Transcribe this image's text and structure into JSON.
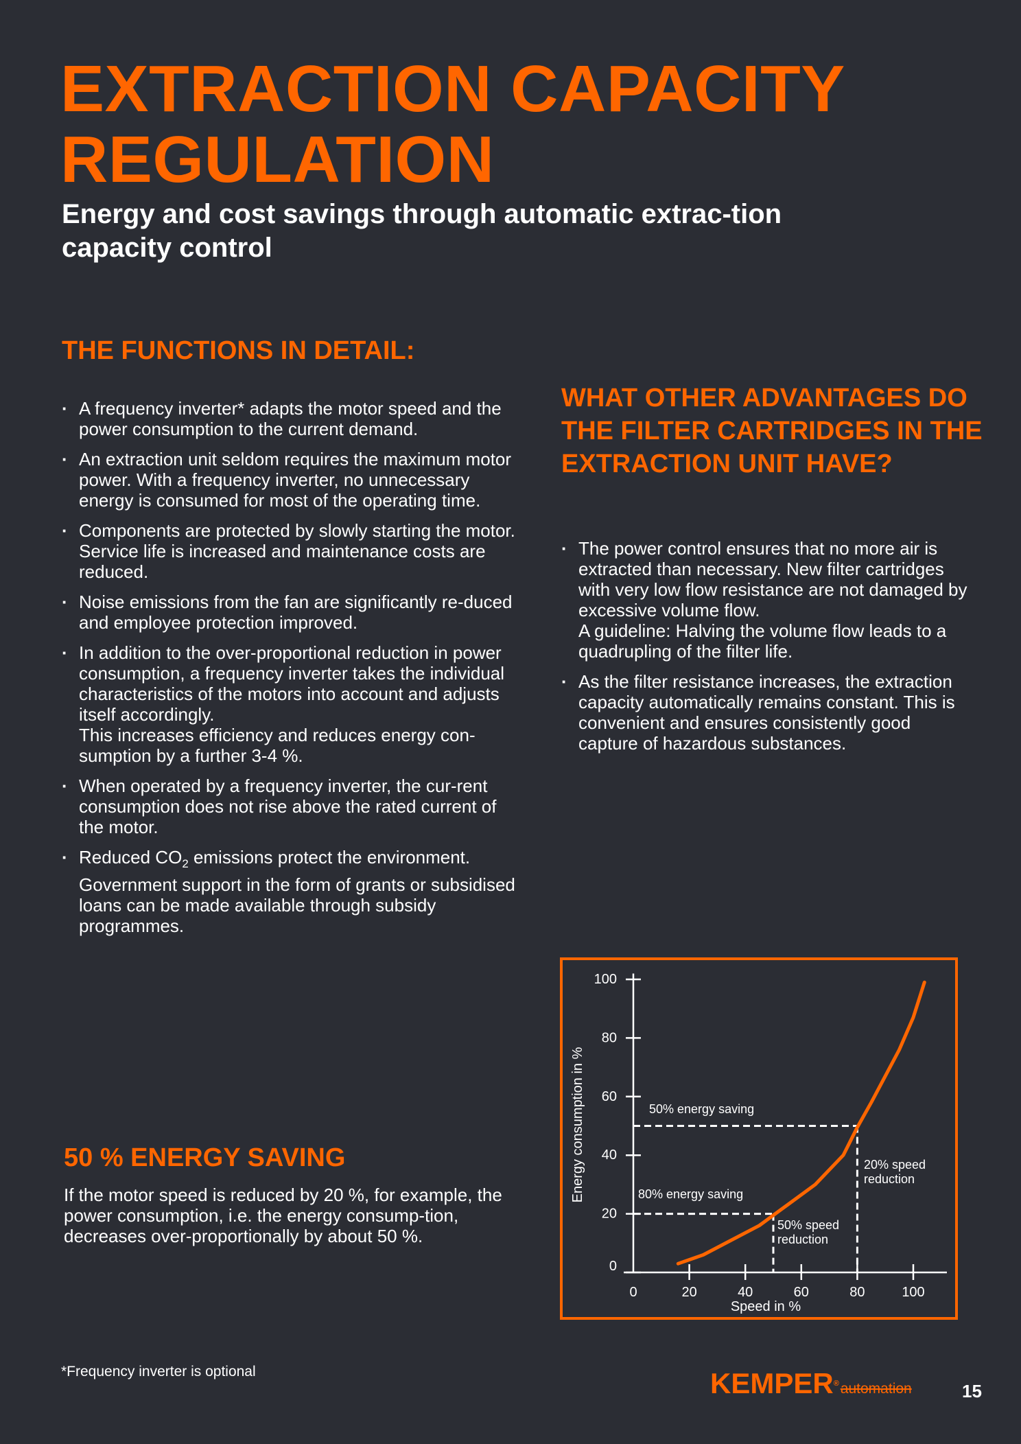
{
  "title": {
    "line1": "EXTRACTION CAPACITY",
    "line2": "REGULATION",
    "subtitle": "Energy and cost savings through automatic extrac-tion capacity control"
  },
  "functions": {
    "heading": "THE FUNCTIONS IN DETAIL:",
    "items": [
      "A frequency inverter* adapts the motor speed and the power consumption to the current demand.",
      "An extraction unit seldom requires the maximum motor power. With a frequency inverter, no unnecessary energy is consumed for most of the operating time.",
      "Components are protected by slowly starting the motor. Service life is increased and maintenance costs are reduced.",
      "Noise emissions from the fan are significantly re-duced and employee protection improved.",
      "In addition to the over-proportional reduction in power consumption, a frequency inverter takes the individual characteristics of the motors into account and adjusts itself accordingly.",
      "This increases efficiency and reduces energy con-sumption by a further 3-4 %.",
      "When operated by a frequency inverter, the cur-rent consumption does not rise above the rated current of the motor.",
      "Reduced CO",
      "2",
      " emissions protect the environment. Government support in the form of grants or subsidised loans can be made available through subsidy programmes."
    ]
  },
  "advantages": {
    "heading": "WHAT OTHER ADVANTAGES DO THE FILTER CARTRIDGES IN THE EXTRACTION UNIT HAVE?",
    "items": [
      "The power control ensures that no more air is extracted than necessary. New filter cartridges with very low flow resistance are not damaged by excessive volume flow.",
      "A guideline: Halving the volume flow leads to a quadrupling of the filter life.",
      "As the filter resistance increases, the extraction capacity automatically remains constant. This is convenient and ensures consistently good capture of hazardous substances."
    ]
  },
  "saving": {
    "heading": "50 % ENERGY SAVING",
    "text": "If the motor speed is reduced by 20 %, for example, the power consumption, i.e. the energy consump-tion, decreases over-proportionally by about 50 %."
  },
  "footnote": "*Frequency inverter is optional",
  "logo": {
    "brand": "KEMPER",
    "reg": "®",
    "sub": "automation"
  },
  "page_number": "15",
  "chart_data": {
    "type": "line",
    "xlabel": "Speed in %",
    "ylabel": "Energy consumption in %",
    "x_ticks": [
      0,
      20,
      40,
      60,
      80,
      100
    ],
    "y_ticks": [
      0,
      20,
      40,
      60,
      80,
      100
    ],
    "xlim": [
      0,
      112
    ],
    "ylim": [
      0,
      102
    ],
    "series": [
      {
        "name": "Energy consumption",
        "x": [
          16,
          25,
          35,
          45,
          50,
          55,
          65,
          75,
          80,
          85,
          90,
          95,
          100,
          104
        ],
        "y": [
          3,
          6,
          11,
          16,
          19.5,
          23,
          30,
          40,
          49.5,
          58,
          67,
          76,
          87,
          99
        ]
      }
    ],
    "annotations": [
      {
        "label": "50% energy saving",
        "x": 80,
        "y": 50
      },
      {
        "label": "80% energy saving",
        "x": 50,
        "y": 20
      },
      {
        "label_lines": [
          "20% speed",
          "reduction"
        ],
        "x": 80
      },
      {
        "label_lines": [
          "50% speed",
          "reduction"
        ],
        "x": 50
      }
    ],
    "colors": {
      "curve": "#ff6600",
      "axis": "#ffffff",
      "frame": "#ff6600"
    }
  }
}
